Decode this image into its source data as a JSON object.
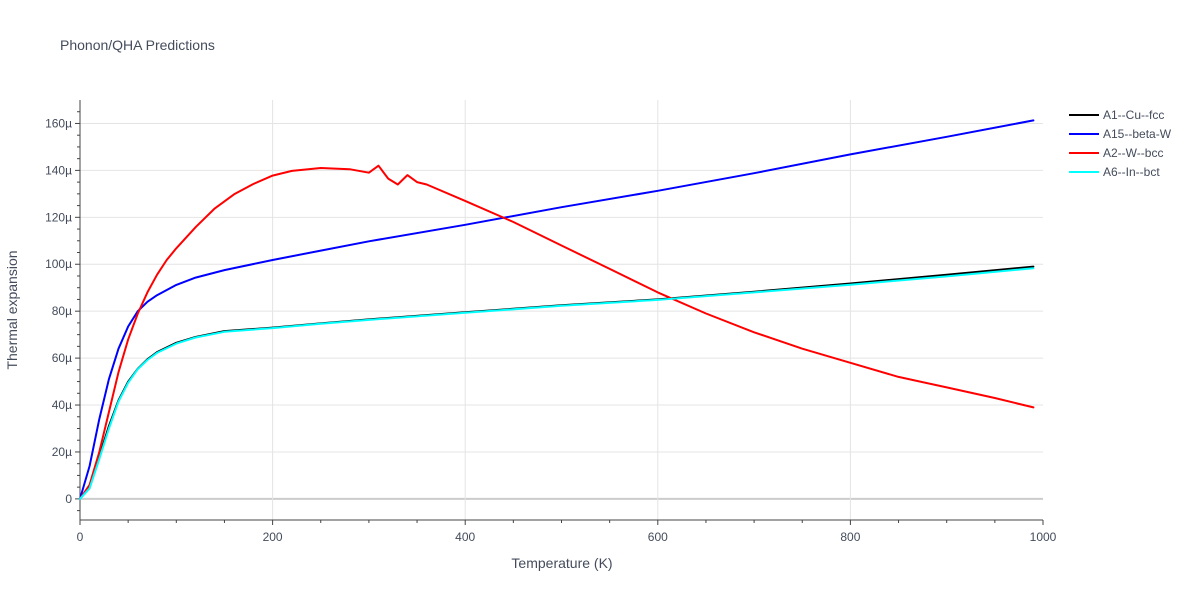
{
  "chart_data": {
    "type": "line",
    "title": "Phonon/QHA Predictions",
    "xlabel": "Temperature (K)",
    "ylabel": "Thermal expansion",
    "xlim": [
      0,
      1000
    ],
    "ylim": [
      -9e-06,
      0.00017
    ],
    "x_ticks": [
      0,
      200,
      400,
      600,
      800,
      1000
    ],
    "x_tick_labels": [
      "0",
      "200",
      "400",
      "600",
      "800",
      "1000"
    ],
    "y_ticks": [
      0,
      2e-05,
      4e-05,
      6e-05,
      8e-05,
      0.0001,
      0.00012,
      0.00014,
      0.00016
    ],
    "y_tick_labels": [
      "0",
      "20µ",
      "40µ",
      "60µ",
      "80µ",
      "100µ",
      "120µ",
      "140µ",
      "160µ"
    ],
    "grid": true,
    "legend_position": "top-right",
    "series": [
      {
        "name": "A1--Cu--fcc",
        "color": "#000000",
        "x": [
          0,
          10,
          20,
          30,
          40,
          50,
          60,
          70,
          80,
          100,
          120,
          150,
          200,
          250,
          300,
          400,
          500,
          600,
          700,
          800,
          900,
          990
        ],
        "y": [
          0,
          5e-06,
          1.8e-05,
          3.1e-05,
          4.2e-05,
          5e-05,
          5.55e-05,
          5.95e-05,
          6.25e-05,
          6.65e-05,
          6.9e-05,
          7.15e-05,
          7.3e-05,
          7.48e-05,
          7.65e-05,
          7.95e-05,
          8.25e-05,
          8.5e-05,
          8.83e-05,
          9.18e-05,
          9.55e-05,
          9.9e-05
        ]
      },
      {
        "name": "A15--beta-W",
        "color": "#0000ff",
        "x": [
          0,
          10,
          20,
          30,
          40,
          50,
          60,
          70,
          80,
          100,
          120,
          150,
          200,
          250,
          300,
          400,
          500,
          600,
          700,
          800,
          900,
          990
        ],
        "y": [
          0,
          1.4e-05,
          3.4e-05,
          5.1e-05,
          6.4e-05,
          7.35e-05,
          8e-05,
          8.4e-05,
          8.68e-05,
          9.12e-05,
          9.43e-05,
          9.75e-05,
          0.0001018,
          0.0001058,
          0.0001098,
          0.0001168,
          0.0001243,
          0.0001313,
          0.0001388,
          0.0001468,
          0.0001543,
          0.0001613
        ]
      },
      {
        "name": "A2--W--bcc",
        "color": "#ff0000",
        "x": [
          0,
          10,
          20,
          30,
          40,
          50,
          60,
          70,
          80,
          90,
          100,
          120,
          140,
          160,
          180,
          200,
          220,
          250,
          280,
          300,
          310,
          320,
          330,
          340,
          350,
          360,
          400,
          450,
          500,
          550,
          600,
          650,
          700,
          750,
          800,
          850,
          900,
          950,
          990
        ],
        "y": [
          0,
          6e-06,
          2e-05,
          3.7e-05,
          5.4e-05,
          6.8e-05,
          7.9e-05,
          8.8e-05,
          9.55e-05,
          0.0001018,
          0.0001068,
          0.0001158,
          0.0001238,
          0.0001298,
          0.0001342,
          0.0001378,
          0.0001398,
          0.000141,
          0.0001405,
          0.000139,
          0.000142,
          0.0001365,
          0.000134,
          0.000138,
          0.000135,
          0.000134,
          0.000127,
          0.000118,
          0.000108,
          9.8e-05,
          8.8e-05,
          7.9e-05,
          7.1e-05,
          6.4e-05,
          5.8e-05,
          5.2e-05,
          4.75e-05,
          4.3e-05,
          3.9e-05
        ]
      },
      {
        "name": "A6--In--bct",
        "color": "#00ffff",
        "x": [
          0,
          10,
          20,
          30,
          40,
          50,
          60,
          70,
          80,
          100,
          120,
          150,
          200,
          250,
          300,
          400,
          500,
          600,
          700,
          800,
          900,
          990
        ],
        "y": [
          0,
          4.5e-06,
          1.7e-05,
          3e-05,
          4.15e-05,
          4.95e-05,
          5.53e-05,
          5.92e-05,
          6.22e-05,
          6.62e-05,
          6.88e-05,
          7.12e-05,
          7.28e-05,
          7.46e-05,
          7.63e-05,
          7.93e-05,
          8.23e-05,
          8.48e-05,
          8.8e-05,
          9.13e-05,
          9.48e-05,
          9.83e-05
        ]
      }
    ]
  }
}
